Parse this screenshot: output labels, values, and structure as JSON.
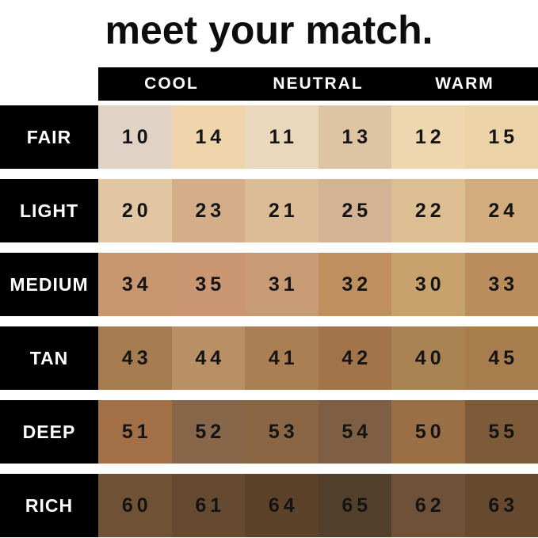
{
  "title": "meet your match.",
  "colors": {
    "background": "#ffffff",
    "header_bg": "#000000",
    "header_text": "#ffffff",
    "label_bg": "#000000",
    "label_text": "#ffffff",
    "number_text": "#141414",
    "title_text": "#0d0d0d"
  },
  "chart_data": {
    "type": "table",
    "title": "meet your match.",
    "column_groups": [
      "COOL",
      "NEUTRAL",
      "WARM"
    ],
    "layout": "6 depth rows x 6 shade columns; undertone headers each span 2 columns",
    "rows": [
      {
        "label": "FAIR",
        "shades": [
          {
            "number": "10",
            "color": "#e0d2c4"
          },
          {
            "number": "14",
            "color": "#eed3ab"
          },
          {
            "number": "11",
            "color": "#ead8bc"
          },
          {
            "number": "13",
            "color": "#ddc5a4"
          },
          {
            "number": "12",
            "color": "#eed7ae"
          },
          {
            "number": "15",
            "color": "#ecd3a7"
          }
        ]
      },
      {
        "label": "LIGHT",
        "shades": [
          {
            "number": "20",
            "color": "#e2c5a2"
          },
          {
            "number": "23",
            "color": "#d4ae89"
          },
          {
            "number": "21",
            "color": "#dcbc96"
          },
          {
            "number": "25",
            "color": "#d3b394"
          },
          {
            "number": "22",
            "color": "#ddbd92"
          },
          {
            "number": "24",
            "color": "#d2ac7c"
          }
        ]
      },
      {
        "label": "MEDIUM",
        "shades": [
          {
            "number": "34",
            "color": "#c9976f"
          },
          {
            "number": "35",
            "color": "#cb9672"
          },
          {
            "number": "31",
            "color": "#c89b74"
          },
          {
            "number": "32",
            "color": "#c08f60"
          },
          {
            "number": "30",
            "color": "#c8a26c"
          },
          {
            "number": "33",
            "color": "#bb8d5d"
          }
        ]
      },
      {
        "label": "TAN",
        "shades": [
          {
            "number": "43",
            "color": "#a67c51"
          },
          {
            "number": "44",
            "color": "#b98f66"
          },
          {
            "number": "41",
            "color": "#a97f53"
          },
          {
            "number": "42",
            "color": "#a3744a"
          },
          {
            "number": "40",
            "color": "#aa8355"
          },
          {
            "number": "45",
            "color": "#a87e4f"
          }
        ]
      },
      {
        "label": "DEEP",
        "shades": [
          {
            "number": "51",
            "color": "#a26f47"
          },
          {
            "number": "52",
            "color": "#876649"
          },
          {
            "number": "53",
            "color": "#8a6644"
          },
          {
            "number": "54",
            "color": "#7f5f43"
          },
          {
            "number": "50",
            "color": "#9a6f46"
          },
          {
            "number": "55",
            "color": "#7d5b39"
          }
        ]
      },
      {
        "label": "RICH",
        "shades": [
          {
            "number": "60",
            "color": "#6f5136"
          },
          {
            "number": "61",
            "color": "#654a31"
          },
          {
            "number": "64",
            "color": "#5d422a"
          },
          {
            "number": "65",
            "color": "#53402c"
          },
          {
            "number": "62",
            "color": "#6e5138"
          },
          {
            "number": "63",
            "color": "#66492e"
          }
        ]
      }
    ]
  }
}
